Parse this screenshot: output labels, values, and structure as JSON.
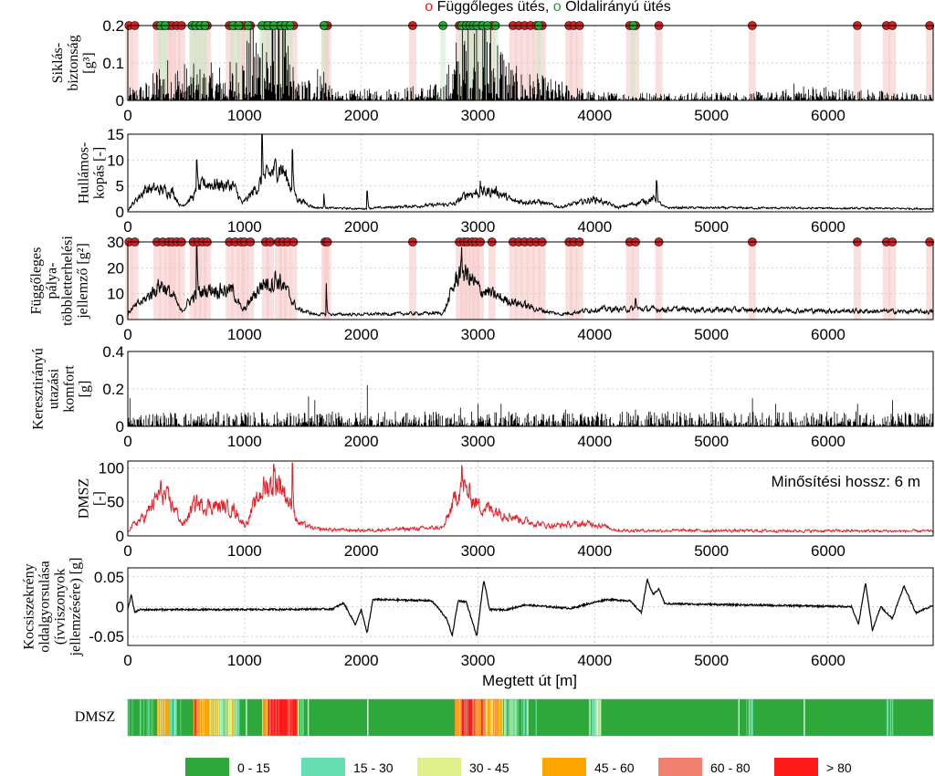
{
  "header": {
    "marker_v": "o",
    "label_v": " Függőleges ütés, ",
    "marker_l": "o",
    "label_l": " Oldalirányú ütés",
    "color_v": "#e02020",
    "color_l": "#1a9a3a"
  },
  "colors": {
    "trace": "#000000",
    "dmsz": "#e8202a",
    "grid": "#cfcfcf",
    "hit_v": "#d42020",
    "hit_l": "#22b030",
    "band_v": "#f6c4c4",
    "band_l": "#c8ecc8"
  },
  "chart_data": [
    {
      "type": "line",
      "ylabel": [
        "Siklás-",
        "biztonság",
        "[g³]"
      ],
      "ylim": [
        0,
        0.2
      ],
      "yticks": [
        "0",
        "0.1",
        "0.2"
      ],
      "xticks": [
        "0",
        "1000",
        "2000",
        "3000",
        "4000",
        "5000",
        "6000"
      ],
      "xlim": [
        0,
        6900
      ],
      "grid": true,
      "hits_vertical_x": [
        10,
        60,
        250,
        300,
        350,
        380,
        420,
        460,
        560,
        600,
        640,
        680,
        870,
        920,
        970,
        1000,
        1050,
        1180,
        1220,
        1290,
        1330,
        1370,
        1420,
        1690,
        1710,
        2440,
        2840,
        2880,
        2910,
        2950,
        2980,
        3020,
        3120,
        3300,
        3350,
        3400,
        3450,
        3500,
        3550,
        3780,
        3820,
        3870,
        4300,
        4350,
        4550,
        5350,
        6250,
        6500,
        6550,
        6870
      ],
      "hits_lateral_x": [
        280,
        320,
        550,
        580,
        620,
        660,
        900,
        950,
        1030,
        1150,
        1200,
        1250,
        1310,
        1350,
        1390,
        1680,
        2700,
        2860,
        2900,
        2930,
        2960,
        2990,
        3040,
        3080,
        3150,
        3520,
        4330
      ],
      "series": [
        {
          "kind": "spike",
          "profile": [
            [
              0,
              0.02
            ],
            [
              200,
              0.04
            ],
            [
              280,
              0.08
            ],
            [
              600,
              0.06
            ],
            [
              900,
              0.07
            ],
            [
              1150,
              0.17
            ],
            [
              1300,
              0.2
            ],
            [
              1450,
              0.03
            ],
            [
              1700,
              0.08
            ],
            [
              1750,
              0.015
            ],
            [
              2700,
              0.03
            ],
            [
              2850,
              0.14
            ],
            [
              3000,
              0.2
            ],
            [
              3200,
              0.12
            ],
            [
              3300,
              0.06
            ],
            [
              3600,
              0.04
            ],
            [
              4000,
              0.015
            ],
            [
              5600,
              0.015
            ],
            [
              5700,
              0.03
            ],
            [
              6900,
              0.01
            ]
          ]
        }
      ]
    },
    {
      "type": "line",
      "ylabel": [
        "Hullámos-",
        "kopás [-]"
      ],
      "ylim": [
        0,
        15
      ],
      "yticks": [
        "0",
        "5",
        "10",
        "15"
      ],
      "xticks": [
        "0",
        "1000",
        "2000",
        "3000",
        "4000",
        "5000",
        "6000"
      ],
      "xlim": [
        0,
        6900
      ],
      "grid": true,
      "series": [
        {
          "kind": "noisy",
          "profile": [
            [
              0,
              0.5
            ],
            [
              150,
              4.5
            ],
            [
              380,
              4.0
            ],
            [
              450,
              1.0
            ],
            [
              560,
              3.0
            ],
            [
              650,
              5.5
            ],
            [
              900,
              5.0
            ],
            [
              980,
              1.5
            ],
            [
              1150,
              6.0
            ],
            [
              1300,
              9.0
            ],
            [
              1450,
              2.5
            ],
            [
              1600,
              0.8
            ],
            [
              2000,
              0.6
            ],
            [
              2800,
              1.5
            ],
            [
              2900,
              3.5
            ],
            [
              3150,
              4.0
            ],
            [
              3300,
              2.0
            ],
            [
              3500,
              2.0
            ],
            [
              3700,
              0.9
            ],
            [
              4000,
              2.5
            ],
            [
              4200,
              0.8
            ],
            [
              4500,
              2.5
            ],
            [
              4600,
              0.8
            ],
            [
              6900,
              0.6
            ]
          ],
          "peaks": [
            [
              590,
              10
            ],
            [
              1150,
              15
            ],
            [
              1410,
              12
            ],
            [
              1680,
              3.5
            ],
            [
              2050,
              4
            ],
            [
              3020,
              6
            ],
            [
              4530,
              6
            ]
          ]
        }
      ]
    },
    {
      "type": "line",
      "ylabel": [
        "Függőleges",
        "pálya-",
        "többletterhelési",
        "jellemző [g²]"
      ],
      "ylim": [
        0,
        30
      ],
      "yticks": [
        "0",
        "10",
        "20",
        "30"
      ],
      "xticks": [
        "0",
        "1000",
        "2000",
        "3000",
        "4000",
        "5000",
        "6000"
      ],
      "xlim": [
        0,
        6900
      ],
      "grid": true,
      "hits_vertical_x": [
        10,
        60,
        250,
        300,
        350,
        380,
        420,
        460,
        560,
        600,
        640,
        680,
        870,
        920,
        970,
        1000,
        1050,
        1180,
        1220,
        1290,
        1330,
        1370,
        1420,
        1690,
        1710,
        2440,
        2840,
        2880,
        2910,
        2950,
        2980,
        3020,
        3120,
        3300,
        3350,
        3400,
        3450,
        3500,
        3550,
        3780,
        3820,
        3870,
        4300,
        4350,
        4550,
        5350,
        6250,
        6500,
        6550,
        6870
      ],
      "series": [
        {
          "kind": "noisy",
          "profile": [
            [
              0,
              3
            ],
            [
              150,
              8
            ],
            [
              280,
              14
            ],
            [
              400,
              8
            ],
            [
              450,
              3
            ],
            [
              560,
              9
            ],
            [
              700,
              12
            ],
            [
              900,
              11
            ],
            [
              980,
              3
            ],
            [
              1150,
              14
            ],
            [
              1300,
              15
            ],
            [
              1450,
              4
            ],
            [
              1600,
              2
            ],
            [
              2000,
              2
            ],
            [
              2700,
              2.5
            ],
            [
              2850,
              20
            ],
            [
              3000,
              12
            ],
            [
              3200,
              8
            ],
            [
              3300,
              7
            ],
            [
              3500,
              4
            ],
            [
              3700,
              2
            ],
            [
              4000,
              4
            ],
            [
              4500,
              4
            ],
            [
              6900,
              3
            ]
          ],
          "peaks": [
            [
              590,
              29
            ],
            [
              1260,
              18
            ],
            [
              1700,
              14
            ],
            [
              2860,
              28
            ],
            [
              4350,
              8
            ]
          ]
        }
      ]
    },
    {
      "type": "line",
      "ylabel": [
        "Keresztirányú",
        "utazási",
        "komfort",
        "[g]"
      ],
      "ylim": [
        0,
        0.4
      ],
      "yticks": [
        "0",
        "0.2",
        "0.4"
      ],
      "xticks": [
        "0",
        "1000",
        "2000",
        "3000",
        "4000",
        "5000",
        "6000"
      ],
      "xlim": [
        0,
        6900
      ],
      "grid": true,
      "series": [
        {
          "kind": "spike",
          "profile": [
            [
              0,
              0.05
            ],
            [
              6900,
              0.05
            ]
          ],
          "peaks": [
            [
              20,
              0.15
            ],
            [
              400,
              0.07
            ],
            [
              1000,
              0.07
            ],
            [
              1550,
              0.16
            ],
            [
              1600,
              0.14
            ],
            [
              2050,
              0.22
            ],
            [
              2850,
              0.1
            ],
            [
              3000,
              0.12
            ],
            [
              3200,
              0.12
            ],
            [
              3750,
              0.09
            ],
            [
              4350,
              0.09
            ],
            [
              5350,
              0.15
            ],
            [
              5550,
              0.12
            ],
            [
              6250,
              0.12
            ],
            [
              6550,
              0.14
            ]
          ]
        }
      ]
    },
    {
      "type": "line",
      "ylabel": [
        "DMSZ",
        "[-]"
      ],
      "ylim": [
        0,
        110
      ],
      "yticks": [
        "0",
        "50",
        "100"
      ],
      "xticks": [
        "0",
        "1000",
        "2000",
        "3000",
        "4000",
        "5000",
        "6000"
      ],
      "xlim": [
        0,
        6900
      ],
      "grid": true,
      "annotation": "Minősítési hossz: 6 m",
      "series": [
        {
          "kind": "noisy",
          "profile": [
            [
              0,
              10
            ],
            [
              150,
              30
            ],
            [
              280,
              65
            ],
            [
              400,
              40
            ],
            [
              470,
              15
            ],
            [
              560,
              45
            ],
            [
              700,
              45
            ],
            [
              900,
              40
            ],
            [
              1000,
              15
            ],
            [
              1150,
              70
            ],
            [
              1300,
              80
            ],
            [
              1450,
              20
            ],
            [
              1600,
              10
            ],
            [
              2000,
              8
            ],
            [
              2700,
              12
            ],
            [
              2850,
              75
            ],
            [
              3000,
              45
            ],
            [
              3200,
              35
            ],
            [
              3400,
              22
            ],
            [
              3600,
              15
            ],
            [
              4000,
              18
            ],
            [
              4200,
              8
            ],
            [
              6900,
              7
            ]
          ],
          "peaks": [
            [
              590,
              60
            ],
            [
              1250,
              105
            ],
            [
              1410,
              107
            ],
            [
              2860,
              104
            ]
          ]
        }
      ]
    },
    {
      "type": "line",
      "ylabel": [
        "Kocsiszekrény",
        "oldalgyorsulása",
        "(ívviszonyok",
        "jellemzésére) [g]"
      ],
      "ylim": [
        -0.065,
        0.065
      ],
      "yticks": [
        "-0.05",
        "0",
        "0.05"
      ],
      "xticks": [
        "0",
        "1000",
        "2000",
        "3000",
        "4000",
        "5000",
        "6000"
      ],
      "xlim": [
        0,
        6900
      ],
      "grid": true,
      "xlabel": "Megtett út [m]",
      "series": [
        {
          "kind": "smooth",
          "profile": [
            [
              0,
              -0.005
            ],
            [
              30,
              0.02
            ],
            [
              60,
              -0.01
            ],
            [
              100,
              -0.005
            ],
            [
              900,
              -0.005
            ],
            [
              1750,
              -0.004
            ],
            [
              1850,
              0.006
            ],
            [
              1950,
              -0.03
            ],
            [
              2000,
              -0.005
            ],
            [
              2050,
              -0.045
            ],
            [
              2100,
              0.012
            ],
            [
              2600,
              0.01
            ],
            [
              2650,
              0.0
            ],
            [
              2730,
              -0.02
            ],
            [
              2780,
              -0.048
            ],
            [
              2830,
              0.01
            ],
            [
              2900,
              0.008
            ],
            [
              2990,
              -0.05
            ],
            [
              3050,
              0.045
            ],
            [
              3100,
              -0.005
            ],
            [
              3250,
              -0.005
            ],
            [
              3400,
              0.003
            ],
            [
              3800,
              -0.003
            ],
            [
              3950,
              0.005
            ],
            [
              4100,
              0.012
            ],
            [
              4300,
              0.01
            ],
            [
              4400,
              -0.01
            ],
            [
              4450,
              0.045
            ],
            [
              4500,
              0.02
            ],
            [
              4550,
              0.03
            ],
            [
              4600,
              0.005
            ],
            [
              6200,
              0.0
            ],
            [
              6260,
              -0.03
            ],
            [
              6320,
              0.04
            ],
            [
              6380,
              -0.04
            ],
            [
              6450,
              0.0
            ],
            [
              6550,
              -0.02
            ],
            [
              6650,
              0.035
            ],
            [
              6750,
              -0.01
            ],
            [
              6900,
              0.002
            ]
          ]
        }
      ]
    }
  ],
  "strip": {
    "label": "DMSZ",
    "segment_length_m": 6,
    "colors_by_class": [
      "#2ea83a",
      "#66ddb0",
      "#dff08a",
      "#ffa500",
      "#f08070",
      "#ff1a1a"
    ],
    "bands": [
      [
        0,
        250,
        0
      ],
      [
        250,
        300,
        2
      ],
      [
        300,
        360,
        3
      ],
      [
        360,
        420,
        1
      ],
      [
        420,
        470,
        0
      ],
      [
        560,
        600,
        4
      ],
      [
        600,
        700,
        3
      ],
      [
        700,
        900,
        2
      ],
      [
        900,
        950,
        1
      ],
      [
        1150,
        1200,
        3
      ],
      [
        1200,
        1450,
        5
      ],
      [
        1450,
        1500,
        1
      ],
      [
        2800,
        2850,
        3
      ],
      [
        2850,
        2950,
        5
      ],
      [
        2950,
        3050,
        4
      ],
      [
        3050,
        3200,
        3
      ],
      [
        3200,
        3350,
        1
      ],
      [
        3350,
        3500,
        0
      ],
      [
        3950,
        4050,
        1
      ],
      [
        5300,
        5350,
        1
      ],
      [
        6500,
        6550,
        1
      ]
    ]
  },
  "legend": [
    {
      "label": "0 - 15",
      "color": "#2ea83a"
    },
    {
      "label": "15 - 30",
      "color": "#66ddb0"
    },
    {
      "label": "30 - 45",
      "color": "#dff08a"
    },
    {
      "label": "45 - 60",
      "color": "#ffa500"
    },
    {
      "label": "60 - 80",
      "color": "#f08070"
    },
    {
      "label": "> 80",
      "color": "#ff1a1a"
    }
  ]
}
